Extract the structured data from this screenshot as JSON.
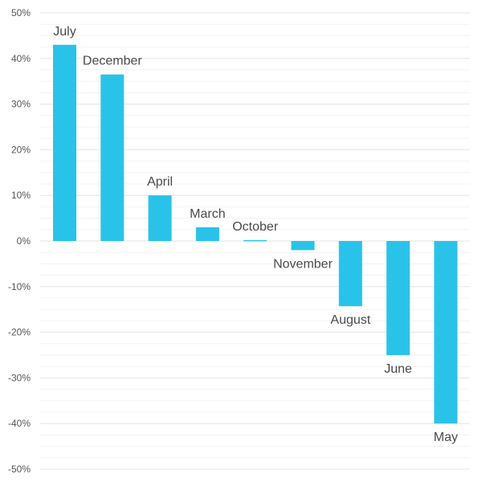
{
  "chart_data": {
    "type": "bar",
    "title": "",
    "xlabel": "",
    "ylabel": "",
    "categories": [
      "July",
      "December",
      "April",
      "March",
      "October",
      "November",
      "August",
      "June",
      "May"
    ],
    "values": [
      43,
      36.5,
      10,
      3,
      0.2,
      -2,
      -14.3,
      -25,
      -40
    ],
    "ylim": [
      -50,
      50
    ],
    "yticks": [
      50,
      40,
      30,
      20,
      10,
      0,
      -10,
      -20,
      -30,
      -40,
      -50
    ],
    "ytick_labels": [
      "50%",
      "40%",
      "30%",
      "20%",
      "10%",
      "0%",
      "-10%",
      "-20%",
      "-30%",
      "-40%",
      "-50%"
    ],
    "grid": true,
    "bar_color": "#29c3ea",
    "grid_color_major": "#e6e6e6",
    "grid_color_minor": "#f3f3f3",
    "label_color": "#4a4a4a",
    "tick_color": "#555555"
  }
}
